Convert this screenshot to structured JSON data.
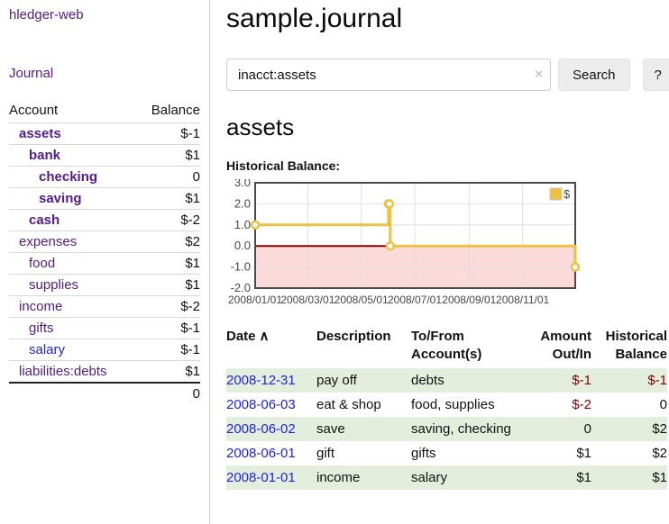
{
  "app": {
    "title": "hledger-web",
    "nav_journal": "Journal"
  },
  "sidebar": {
    "table_headers": {
      "account": "Account",
      "balance": "Balance"
    },
    "accounts": [
      {
        "name": "assets",
        "depth": 1,
        "bold": true,
        "link": "purple",
        "balance": "$-1",
        "balance_class": "neg-strong"
      },
      {
        "name": "bank",
        "depth": 2,
        "bold": true,
        "link": "purple",
        "balance": "$1",
        "balance_class": ""
      },
      {
        "name": "checking",
        "depth": 3,
        "bold": true,
        "link": "purple",
        "balance": "0",
        "balance_class": ""
      },
      {
        "name": "saving",
        "depth": 3,
        "bold": true,
        "link": "purple",
        "balance": "$1",
        "balance_class": ""
      },
      {
        "name": "cash",
        "depth": 2,
        "bold": true,
        "link": "purple",
        "balance": "$-2",
        "balance_class": "neg-strong"
      },
      {
        "name": "expenses",
        "depth": 1,
        "bold": false,
        "link": "purple",
        "balance": "$2",
        "balance_class": ""
      },
      {
        "name": "food",
        "depth": 2,
        "bold": false,
        "link": "purple",
        "balance": "$1",
        "balance_class": ""
      },
      {
        "name": "supplies",
        "depth": 2,
        "bold": false,
        "link": "purple",
        "balance": "$1",
        "balance_class": ""
      },
      {
        "name": "income",
        "depth": 1,
        "bold": false,
        "link": "purple",
        "balance": "$-2",
        "balance_class": "neg-soft"
      },
      {
        "name": "gifts",
        "depth": 2,
        "bold": false,
        "link": "purple",
        "balance": "$-1",
        "balance_class": "neg-soft"
      },
      {
        "name": "salary",
        "depth": 2,
        "bold": false,
        "link": "blue",
        "balance": "$-1",
        "balance_class": "neg-soft"
      },
      {
        "name": "liabilities:debts",
        "depth": 1,
        "bold": false,
        "link": "purple",
        "balance": "$1",
        "balance_class": ""
      }
    ],
    "total": "0"
  },
  "header": {
    "title": "sample.journal"
  },
  "search": {
    "value": "inacct:assets",
    "clear_icon": "×",
    "button_label": "Search",
    "help_label": "?"
  },
  "account_page": {
    "heading": "assets",
    "chart_label": "Historical Balance:"
  },
  "chart_data": {
    "type": "line",
    "title": "Historical Balance:",
    "step": true,
    "series": [
      {
        "name": "$",
        "color": "#edc240",
        "points": [
          {
            "x": "2008-01-01",
            "y": 1
          },
          {
            "x": "2008-06-01",
            "y": 2
          },
          {
            "x": "2008-06-02",
            "y": 2
          },
          {
            "x": "2008-06-03",
            "y": 0
          },
          {
            "x": "2008-12-31",
            "y": -1
          }
        ]
      }
    ],
    "x_range": [
      "2008-01-01",
      "2008-12-31"
    ],
    "x_ticks": [
      {
        "label": "2008/01/01",
        "date": "2008-01-01"
      },
      {
        "label": "2008/03/01",
        "date": "2008-03-01"
      },
      {
        "label": "2008/05/01",
        "date": "2008-05-01"
      },
      {
        "label": "2008/07/01",
        "date": "2008-07-01"
      },
      {
        "label": "2008/09/01",
        "date": "2008-09-01"
      },
      {
        "label": "2008/11/01",
        "date": "2008-11-01"
      }
    ],
    "y_ticks": [
      3.0,
      2.0,
      1.0,
      0.0,
      -1.0,
      -2.0
    ],
    "ylim": [
      -2,
      3
    ],
    "legend": {
      "label": "$",
      "position": "top-right"
    },
    "grid": true,
    "colors": {
      "border": "#4a4a4a",
      "gridline": "#e0e0e0",
      "zero_line": "#8b0000",
      "negative_region": "#fbdada",
      "tick_text": "#474747"
    }
  },
  "register": {
    "columns": {
      "date": "Date",
      "description": "Description",
      "accounts": "To/From Account(s)",
      "amount": "Amount Out/In",
      "balance": "Historical Balance"
    },
    "sort_icon": "∧",
    "rows": [
      {
        "date": "2008-12-31",
        "description": "pay off",
        "accounts": "debts",
        "amount": "$-1",
        "balance": "$-1"
      },
      {
        "date": "2008-06-03",
        "description": "eat & shop",
        "accounts": "food, supplies",
        "amount": "$-2",
        "balance": "0"
      },
      {
        "date": "2008-06-02",
        "description": "save",
        "accounts": "saving, checking",
        "amount": "0",
        "balance": "$2"
      },
      {
        "date": "2008-06-01",
        "description": "gift",
        "accounts": "gifts",
        "amount": "$1",
        "balance": "$2"
      },
      {
        "date": "2008-01-01",
        "description": "income",
        "accounts": "salary",
        "amount": "$1",
        "balance": "$1"
      }
    ]
  },
  "colors": {
    "link_purple": "#551a8b",
    "link_blue": "#2222dd",
    "negative_strong": "#800000",
    "negative_soft": "#b86868",
    "row_stripe_green": "#e3eedd",
    "series_gold": "#edc240"
  }
}
